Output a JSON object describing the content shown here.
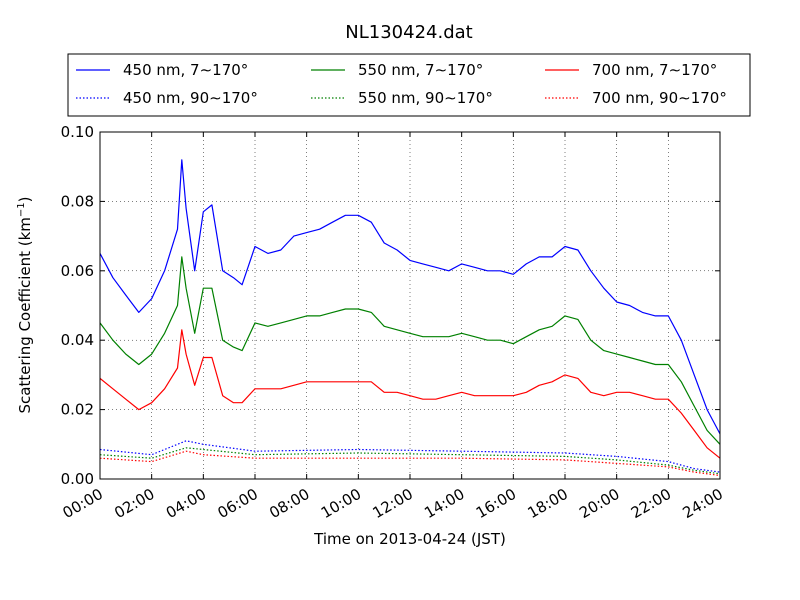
{
  "chart_data": {
    "type": "line",
    "title": "NL130424.dat",
    "xlabel": "Time on 2013-04-24 (JST)",
    "ylabel": "Scattering Coefficient (km",
    "ylabel_sup": "−1",
    "ylabel_close": ")",
    "xlim": [
      "00:00",
      "24:00"
    ],
    "ylim": [
      0.0,
      0.1
    ],
    "x_ticks": [
      "00:00",
      "02:00",
      "04:00",
      "06:00",
      "08:00",
      "10:00",
      "12:00",
      "14:00",
      "16:00",
      "18:00",
      "20:00",
      "22:00",
      "24:00"
    ],
    "y_ticks": [
      "0.00",
      "0.02",
      "0.04",
      "0.06",
      "0.08",
      "0.10"
    ],
    "grid": true,
    "legend_position": "top, above plot (3 columns)",
    "series": [
      {
        "name": "450 nm, 7∼170°",
        "color": "#0000ff",
        "style": "solid",
        "x": [
          "00:00",
          "00:30",
          "01:00",
          "01:30",
          "02:00",
          "02:30",
          "03:00",
          "03:10",
          "03:20",
          "03:40",
          "04:00",
          "04:20",
          "04:45",
          "05:10",
          "05:30",
          "06:00",
          "06:30",
          "07:00",
          "07:30",
          "08:00",
          "08:30",
          "09:00",
          "09:30",
          "10:00",
          "10:30",
          "11:00",
          "11:30",
          "12:00",
          "12:30",
          "13:00",
          "13:30",
          "14:00",
          "14:30",
          "15:00",
          "15:30",
          "16:00",
          "16:30",
          "17:00",
          "17:30",
          "18:00",
          "18:30",
          "19:00",
          "19:30",
          "20:00",
          "20:30",
          "21:00",
          "21:30",
          "22:00",
          "22:30",
          "23:00",
          "23:30",
          "24:00"
        ],
        "values": [
          0.065,
          0.058,
          0.053,
          0.048,
          0.052,
          0.06,
          0.072,
          0.092,
          0.078,
          0.06,
          0.077,
          0.079,
          0.06,
          0.058,
          0.056,
          0.067,
          0.065,
          0.066,
          0.07,
          0.071,
          0.072,
          0.074,
          0.076,
          0.076,
          0.074,
          0.068,
          0.066,
          0.063,
          0.062,
          0.061,
          0.06,
          0.062,
          0.061,
          0.06,
          0.06,
          0.059,
          0.062,
          0.064,
          0.064,
          0.067,
          0.066,
          0.06,
          0.055,
          0.051,
          0.05,
          0.048,
          0.047,
          0.047,
          0.04,
          0.03,
          0.02,
          0.013
        ]
      },
      {
        "name": "550 nm, 7∼170°",
        "color": "#008000",
        "style": "solid",
        "x": [
          "00:00",
          "00:30",
          "01:00",
          "01:30",
          "02:00",
          "02:30",
          "03:00",
          "03:10",
          "03:20",
          "03:40",
          "04:00",
          "04:20",
          "04:45",
          "05:10",
          "05:30",
          "06:00",
          "06:30",
          "07:00",
          "07:30",
          "08:00",
          "08:30",
          "09:00",
          "09:30",
          "10:00",
          "10:30",
          "11:00",
          "11:30",
          "12:00",
          "12:30",
          "13:00",
          "13:30",
          "14:00",
          "14:30",
          "15:00",
          "15:30",
          "16:00",
          "16:30",
          "17:00",
          "17:30",
          "18:00",
          "18:30",
          "19:00",
          "19:30",
          "20:00",
          "20:30",
          "21:00",
          "21:30",
          "22:00",
          "22:30",
          "23:00",
          "23:30",
          "24:00"
        ],
        "values": [
          0.045,
          0.04,
          0.036,
          0.033,
          0.036,
          0.042,
          0.05,
          0.064,
          0.055,
          0.042,
          0.055,
          0.055,
          0.04,
          0.038,
          0.037,
          0.045,
          0.044,
          0.045,
          0.046,
          0.047,
          0.047,
          0.048,
          0.049,
          0.049,
          0.048,
          0.044,
          0.043,
          0.042,
          0.041,
          0.041,
          0.041,
          0.042,
          0.041,
          0.04,
          0.04,
          0.039,
          0.041,
          0.043,
          0.044,
          0.047,
          0.046,
          0.04,
          0.037,
          0.036,
          0.035,
          0.034,
          0.033,
          0.033,
          0.028,
          0.021,
          0.014,
          0.01
        ]
      },
      {
        "name": "700 nm, 7∼170°",
        "color": "#ff0000",
        "style": "solid",
        "x": [
          "00:00",
          "00:30",
          "01:00",
          "01:30",
          "02:00",
          "02:30",
          "03:00",
          "03:10",
          "03:20",
          "03:40",
          "04:00",
          "04:20",
          "04:45",
          "05:10",
          "05:30",
          "06:00",
          "06:30",
          "07:00",
          "07:30",
          "08:00",
          "08:30",
          "09:00",
          "09:30",
          "10:00",
          "10:30",
          "11:00",
          "11:30",
          "12:00",
          "12:30",
          "13:00",
          "13:30",
          "14:00",
          "14:30",
          "15:00",
          "15:30",
          "16:00",
          "16:30",
          "17:00",
          "17:30",
          "18:00",
          "18:30",
          "19:00",
          "19:30",
          "20:00",
          "20:30",
          "21:00",
          "21:30",
          "22:00",
          "22:30",
          "23:00",
          "23:30",
          "24:00"
        ],
        "values": [
          0.029,
          0.026,
          0.023,
          0.02,
          0.022,
          0.026,
          0.032,
          0.043,
          0.036,
          0.027,
          0.035,
          0.035,
          0.024,
          0.022,
          0.022,
          0.026,
          0.026,
          0.026,
          0.027,
          0.028,
          0.028,
          0.028,
          0.028,
          0.028,
          0.028,
          0.025,
          0.025,
          0.024,
          0.023,
          0.023,
          0.024,
          0.025,
          0.024,
          0.024,
          0.024,
          0.024,
          0.025,
          0.027,
          0.028,
          0.03,
          0.029,
          0.025,
          0.024,
          0.025,
          0.025,
          0.024,
          0.023,
          0.023,
          0.019,
          0.014,
          0.009,
          0.006
        ]
      },
      {
        "name": "450 nm, 90∼170°",
        "color": "#0000ff",
        "style": "dotted",
        "x": [
          "00:00",
          "02:00",
          "03:20",
          "04:00",
          "06:00",
          "10:00",
          "14:00",
          "18:00",
          "20:00",
          "22:00",
          "23:00",
          "24:00"
        ],
        "values": [
          0.0085,
          0.007,
          0.011,
          0.01,
          0.008,
          0.0085,
          0.008,
          0.0075,
          0.0065,
          0.005,
          0.003,
          0.002
        ]
      },
      {
        "name": "550 nm, 90∼170°",
        "color": "#008000",
        "style": "dotted",
        "x": [
          "00:00",
          "02:00",
          "03:20",
          "04:00",
          "06:00",
          "10:00",
          "14:00",
          "18:00",
          "20:00",
          "22:00",
          "23:00",
          "24:00"
        ],
        "values": [
          0.007,
          0.006,
          0.009,
          0.0085,
          0.007,
          0.0075,
          0.007,
          0.0065,
          0.0055,
          0.004,
          0.0025,
          0.0015
        ]
      },
      {
        "name": "700 nm, 90∼170°",
        "color": "#ff0000",
        "style": "dotted",
        "x": [
          "00:00",
          "02:00",
          "03:20",
          "04:00",
          "06:00",
          "10:00",
          "14:00",
          "18:00",
          "20:00",
          "22:00",
          "23:00",
          "24:00"
        ],
        "values": [
          0.006,
          0.005,
          0.008,
          0.007,
          0.006,
          0.006,
          0.006,
          0.0055,
          0.0045,
          0.0035,
          0.002,
          0.001
        ]
      }
    ]
  }
}
